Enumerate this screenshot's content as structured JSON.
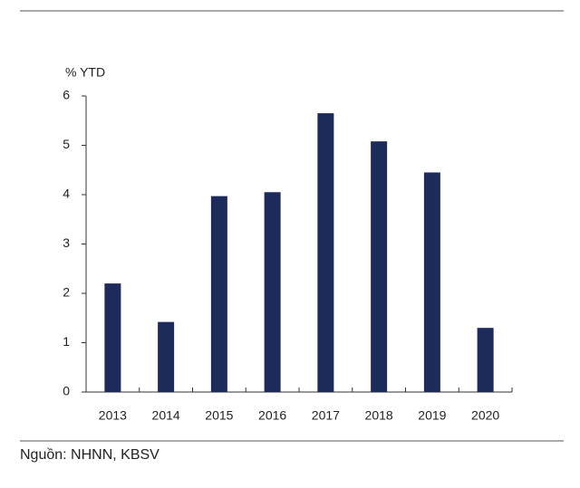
{
  "chart_data": {
    "type": "bar",
    "y_label": "% YTD",
    "categories": [
      "2013",
      "2014",
      "2015",
      "2016",
      "2017",
      "2018",
      "2019",
      "2020"
    ],
    "values": [
      2.2,
      1.42,
      3.97,
      4.05,
      5.65,
      5.08,
      4.45,
      1.3
    ],
    "color": "#1c2b5a",
    "ylim": [
      0,
      6
    ],
    "yticks": [
      0,
      1,
      2,
      3,
      4,
      5,
      6
    ],
    "grid": false,
    "source": "Nguồn: NHNN, KBSV"
  }
}
